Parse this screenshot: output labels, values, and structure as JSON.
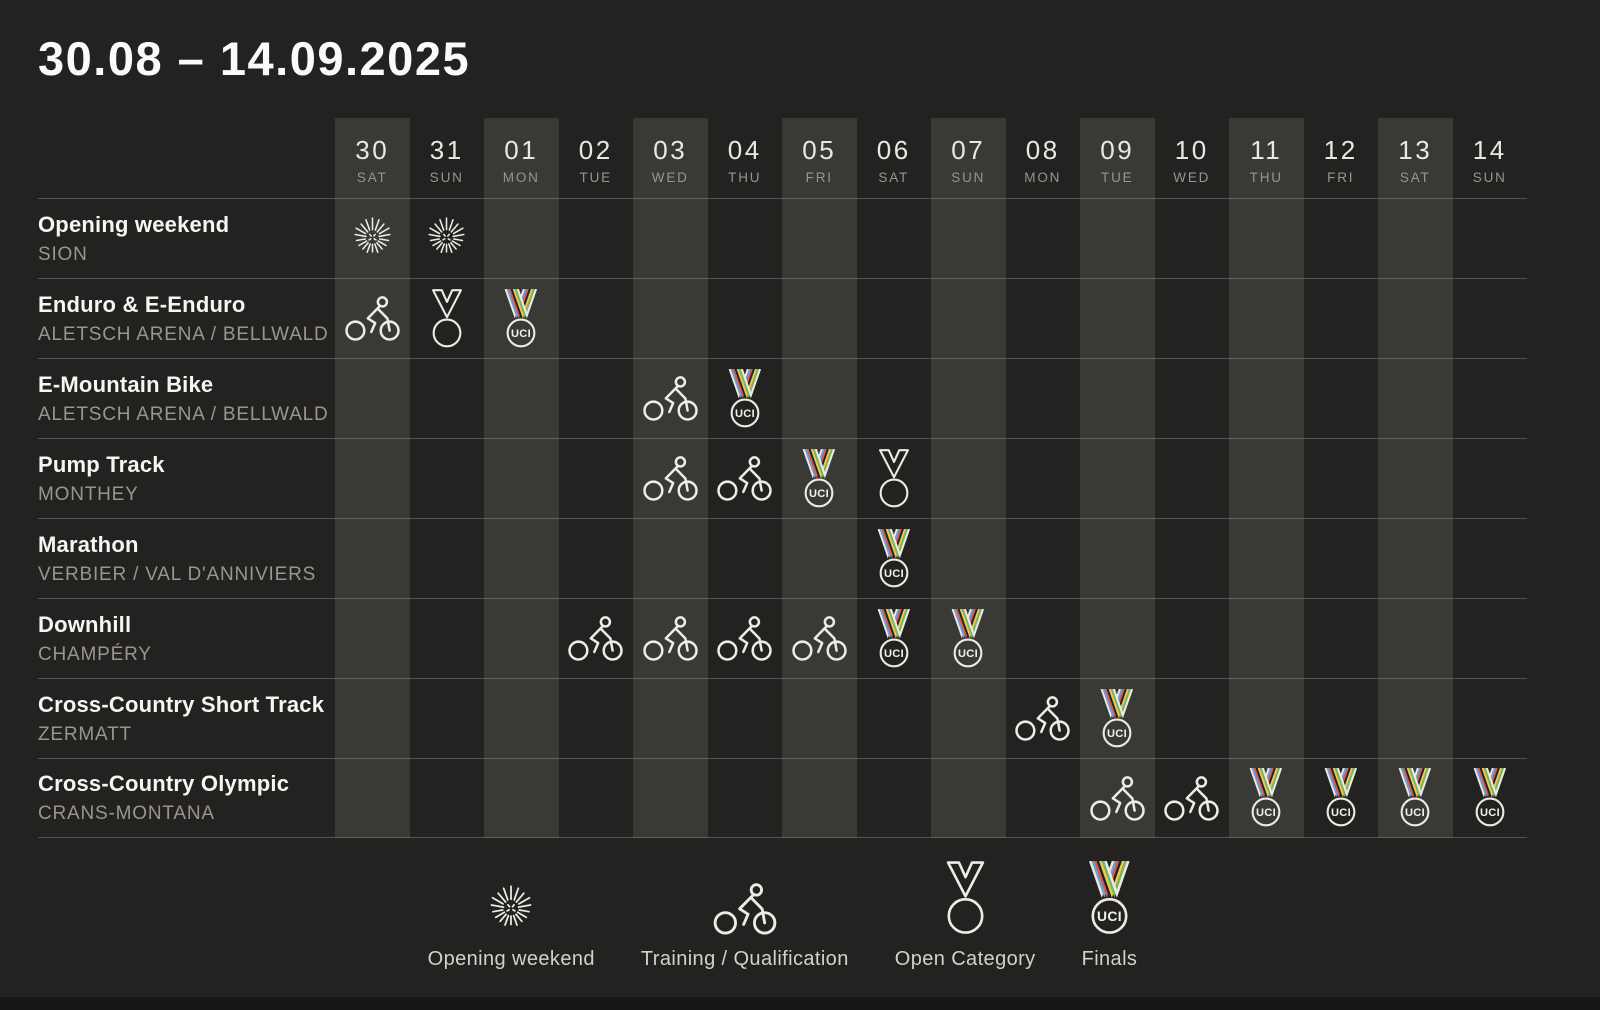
{
  "title": "30.08 – 14.09.2025",
  "colors": {
    "background": "#232221",
    "column_shade": "#3a3936",
    "row_line": "rgba(255,255,255,0.22)",
    "text_primary": "#f6f5f2",
    "text_secondary": "#98968f",
    "icon_line": "#edebe7",
    "uci_rainbow_stripes": [
      "#6f9ed3",
      "#d8584b",
      "#232320",
      "#e5cf4e",
      "#79b269"
    ]
  },
  "chart_data": {
    "type": "table",
    "title": "30.08 – 14.09.2025",
    "columns": [
      {
        "day": "30",
        "weekday": "SAT"
      },
      {
        "day": "31",
        "weekday": "SUN"
      },
      {
        "day": "01",
        "weekday": "MON"
      },
      {
        "day": "02",
        "weekday": "TUE"
      },
      {
        "day": "03",
        "weekday": "WED"
      },
      {
        "day": "04",
        "weekday": "THU"
      },
      {
        "day": "05",
        "weekday": "FRI"
      },
      {
        "day": "06",
        "weekday": "SAT"
      },
      {
        "day": "07",
        "weekday": "SUN"
      },
      {
        "day": "08",
        "weekday": "MON"
      },
      {
        "day": "09",
        "weekday": "TUE"
      },
      {
        "day": "10",
        "weekday": "WED"
      },
      {
        "day": "11",
        "weekday": "THU"
      },
      {
        "day": "12",
        "weekday": "FRI"
      },
      {
        "day": "13",
        "weekday": "SAT"
      },
      {
        "day": "14",
        "weekday": "SUN"
      }
    ],
    "rows": [
      {
        "event": "Opening weekend",
        "location": "SION",
        "entries": [
          {
            "day": "30",
            "type": "fireworks"
          },
          {
            "day": "31",
            "type": "fireworks"
          }
        ]
      },
      {
        "event": "Enduro & E-Enduro",
        "location": "ALETSCH ARENA / BELLWALD",
        "entries": [
          {
            "day": "30",
            "type": "training"
          },
          {
            "day": "31",
            "type": "open"
          },
          {
            "day": "01",
            "type": "finals"
          }
        ]
      },
      {
        "event": "E-Mountain Bike",
        "location": "ALETSCH ARENA / BELLWALD",
        "entries": [
          {
            "day": "03",
            "type": "training"
          },
          {
            "day": "04",
            "type": "finals"
          }
        ]
      },
      {
        "event": "Pump Track",
        "location": "MONTHEY",
        "entries": [
          {
            "day": "03",
            "type": "training"
          },
          {
            "day": "04",
            "type": "training"
          },
          {
            "day": "05",
            "type": "finals"
          },
          {
            "day": "06",
            "type": "open"
          }
        ]
      },
      {
        "event": "Marathon",
        "location": "VERBIER / VAL D'ANNIVIERS",
        "entries": [
          {
            "day": "06",
            "type": "finals"
          }
        ]
      },
      {
        "event": "Downhill",
        "location": "CHAMPÉRY",
        "entries": [
          {
            "day": "02",
            "type": "training"
          },
          {
            "day": "03",
            "type": "training"
          },
          {
            "day": "04",
            "type": "training"
          },
          {
            "day": "05",
            "type": "training"
          },
          {
            "day": "06",
            "type": "finals"
          },
          {
            "day": "07",
            "type": "finals"
          }
        ]
      },
      {
        "event": "Cross-Country Short Track",
        "location": "ZERMATT",
        "entries": [
          {
            "day": "08",
            "type": "training"
          },
          {
            "day": "09",
            "type": "finals"
          }
        ]
      },
      {
        "event": "Cross-Country Olympic",
        "location": "CRANS-MONTANA",
        "entries": [
          {
            "day": "09",
            "type": "training"
          },
          {
            "day": "10",
            "type": "training"
          },
          {
            "day": "11",
            "type": "finals"
          },
          {
            "day": "12",
            "type": "finals"
          },
          {
            "day": "13",
            "type": "finals"
          },
          {
            "day": "14",
            "type": "finals"
          }
        ]
      }
    ],
    "legend": [
      {
        "icon": "fireworks-icon",
        "type": "fireworks",
        "label": "Opening weekend"
      },
      {
        "icon": "cyclist-icon",
        "type": "training",
        "label": "Training / Qualification"
      },
      {
        "icon": "open-medal-icon",
        "type": "open",
        "label": "Open Category"
      },
      {
        "icon": "finals-uci-medal-icon",
        "type": "finals",
        "label": "Finals"
      }
    ]
  }
}
